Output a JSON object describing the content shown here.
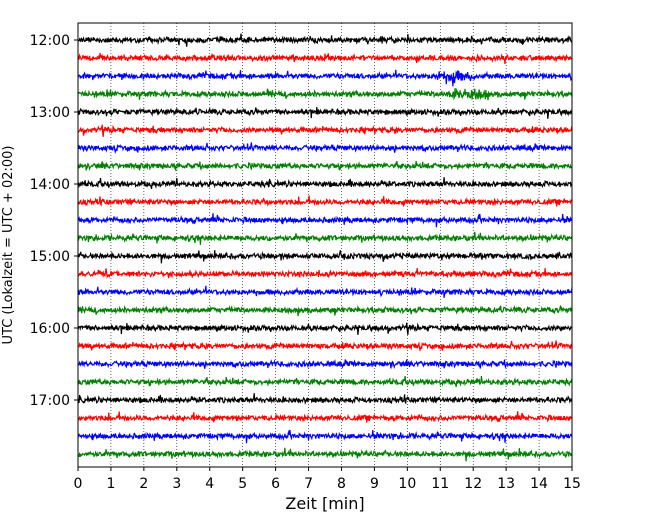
{
  "chart_data": {
    "type": "line",
    "title": "",
    "xlabel": "Zeit  [min]",
    "ylabel": "UTC (Lokalzeit = UTC + 02:00)",
    "xlim": [
      0,
      15
    ],
    "x_ticks": [
      0,
      1,
      2,
      3,
      4,
      5,
      6,
      7,
      8,
      9,
      10,
      11,
      12,
      13,
      14,
      15
    ],
    "x_tick_labels": [
      "0",
      "1",
      "2",
      "3",
      "4",
      "5",
      "6",
      "7",
      "8",
      "9",
      "10",
      "11",
      "12",
      "13",
      "14",
      "15"
    ],
    "y_tick_labels": [
      "12:00",
      "13:00",
      "14:00",
      "15:00",
      "16:00",
      "17:00"
    ],
    "trace_start_times": [
      "12:00",
      "12:15",
      "12:30",
      "12:45",
      "13:00",
      "13:15",
      "13:30",
      "13:45",
      "14:00",
      "14:15",
      "14:30",
      "14:45",
      "15:00",
      "15:15",
      "15:30",
      "15:45",
      "16:00",
      "16:15",
      "16:30",
      "16:45",
      "17:00",
      "17:15",
      "17:30",
      "17:45"
    ],
    "trace_colors": [
      "#000000",
      "#ff0000",
      "#0000ff",
      "#008000"
    ],
    "grid": "vertical dotted",
    "legend": "none",
    "notable_events": [
      {
        "trace": "12:30",
        "x": 11.4,
        "note": "spike"
      },
      {
        "trace": "12:45",
        "x": 11.8,
        "note": "burst"
      }
    ]
  }
}
